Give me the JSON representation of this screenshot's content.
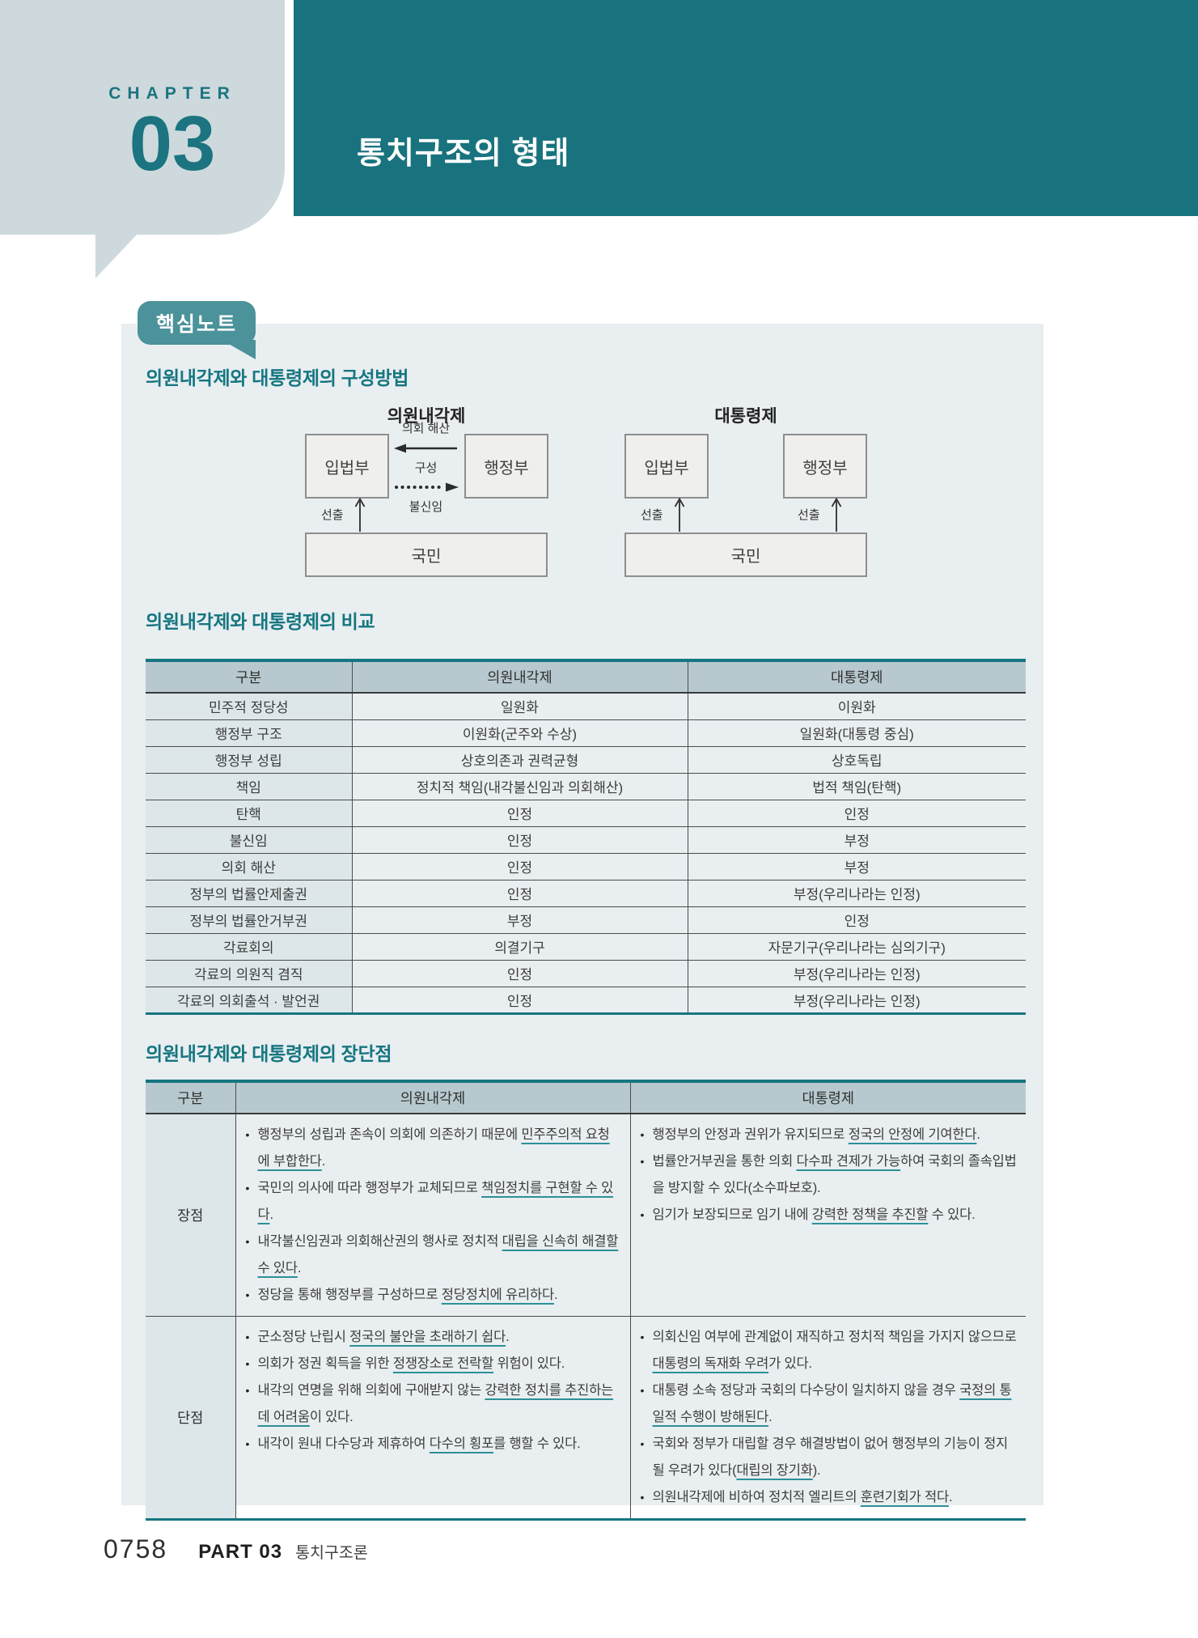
{
  "theme": {
    "accent_teal": "#18737e",
    "badge_teal": "#4b929a",
    "bubble_gray": "#ced9dd",
    "panel_bg": "#e9eef1",
    "table_header_bg": "#b7c9ce",
    "row_label_bg": "#dde7ea",
    "underline_teal": "#2d9097"
  },
  "chapter": {
    "label": "CHAPTER",
    "number": "03",
    "title": "통치구조의 형태"
  },
  "badge": {
    "label": "핵심노트"
  },
  "sections": {
    "composition": {
      "title": "의원내각제와 대통령제의 구성방법",
      "parliamentary": {
        "title": "의원내각제",
        "boxes": {
          "legislature": "입법부",
          "executive": "행정부",
          "people": "국민"
        },
        "arrows": {
          "dissolution": "의회 해산",
          "formation": "구성",
          "no_confidence": "불신임",
          "election": "선출"
        }
      },
      "presidential": {
        "title": "대통령제",
        "boxes": {
          "legislature": "입법부",
          "executive": "행정부",
          "people": "국민"
        },
        "arrows": {
          "election_left": "선출",
          "election_right": "선출"
        }
      }
    },
    "comparison": {
      "title": "의원내각제와 대통령제의 비교",
      "headers": [
        "구분",
        "의원내각제",
        "대통령제"
      ],
      "rows": [
        [
          "민주적 정당성",
          "일원화",
          "이원화"
        ],
        [
          "행정부 구조",
          "이원화(군주와 수상)",
          "일원화(대통령 중심)"
        ],
        [
          "행정부 성립",
          "상호의존과 권력균형",
          "상호독립"
        ],
        [
          "책임",
          "정치적 책임(내각불신임과 의회해산)",
          "법적 책임(탄핵)"
        ],
        [
          "탄핵",
          "인정",
          "인정"
        ],
        [
          "불신임",
          "인정",
          "부정"
        ],
        [
          "의회 해산",
          "인정",
          "부정"
        ],
        [
          "정부의 법률안제출권",
          "인정",
          "부정(우리나라는 인정)"
        ],
        [
          "정부의 법률안거부권",
          "부정",
          "인정"
        ],
        [
          "각료회의",
          "의결기구",
          "자문기구(우리나라는 심의기구)"
        ],
        [
          "각료의 의원직 겸직",
          "인정",
          "부정(우리나라는 인정)"
        ],
        [
          "각료의 의회출석 · 발언권",
          "인정",
          "부정(우리나라는 인정)"
        ]
      ]
    },
    "pros_cons": {
      "title": "의원내각제와 대통령제의 장단점",
      "headers": [
        "구분",
        "의원내각제",
        "대통령제"
      ],
      "rows": [
        {
          "label": "장점",
          "cells": [
            [
              [
                {
                  "t": "행정부의 성립과 존속이 의회에 의존하기 때문에 "
                },
                {
                  "t": "민주주의적 요청에 부합한다",
                  "u": true
                },
                {
                  "t": "."
                }
              ],
              [
                {
                  "t": "국민의 의사에 따라 행정부가 교체되므로 "
                },
                {
                  "t": "책임정치를 구현할 수 있다",
                  "u": true
                },
                {
                  "t": "."
                }
              ],
              [
                {
                  "t": "내각불신임권과 의회해산권의 행사로 정치적 "
                },
                {
                  "t": "대립을 신속히 해결할 수 있다",
                  "u": true
                },
                {
                  "t": "."
                }
              ],
              [
                {
                  "t": "정당을 통해 행정부를 구성하므로 "
                },
                {
                  "t": "정당정치에 유리하다",
                  "u": true
                },
                {
                  "t": "."
                }
              ]
            ],
            [
              [
                {
                  "t": "행정부의 안정과 권위가 유지되므로 "
                },
                {
                  "t": "정국의 안정에 기여한다",
                  "u": true
                },
                {
                  "t": "."
                }
              ],
              [
                {
                  "t": "법률안거부권을 통한 의회 "
                },
                {
                  "t": "다수파 견제가 가능",
                  "u": true
                },
                {
                  "t": "하여 국회의 졸속입법을 방지할 수 있다(소수파보호)."
                }
              ],
              [
                {
                  "t": "임기가 보장되므로 임기 내에 "
                },
                {
                  "t": "강력한 정책을 추진할",
                  "u": true
                },
                {
                  "t": " 수 있다."
                }
              ]
            ]
          ]
        },
        {
          "label": "단점",
          "cells": [
            [
              [
                {
                  "t": "군소정당 난립시 "
                },
                {
                  "t": "정국의 불안을 초래하기 쉽다",
                  "u": true
                },
                {
                  "t": "."
                }
              ],
              [
                {
                  "t": "의회가 정권 획득을 위한 "
                },
                {
                  "t": "정쟁장소로 전락할",
                  "u": true
                },
                {
                  "t": " 위험이 있다."
                }
              ],
              [
                {
                  "t": "내각의 연명을 위해 의회에 구애받지 않는 "
                },
                {
                  "t": "강력한 정치를 추진하는 데 어려움",
                  "u": true
                },
                {
                  "t": "이 있다."
                }
              ],
              [
                {
                  "t": "내각이 원내 다수당과 제휴하여 "
                },
                {
                  "t": "다수의 횡포",
                  "u": true
                },
                {
                  "t": "를 행할 수 있다."
                }
              ]
            ],
            [
              [
                {
                  "t": "의회신임 여부에 관계없이 재직하고 정치적 책임을 가지지 않으므로 "
                },
                {
                  "t": "대통령의 독재화 우려",
                  "u": true
                },
                {
                  "t": "가 있다."
                }
              ],
              [
                {
                  "t": "대통령 소속 정당과 국회의 다수당이 일치하지 않을 경우 "
                },
                {
                  "t": "국정의 통일적 수행이 방해된다",
                  "u": true
                },
                {
                  "t": "."
                }
              ],
              [
                {
                  "t": "국회와 정부가 대립할 경우 해결방법이 없어 행정부의 기능이 정지될 우려가 있다("
                },
                {
                  "t": "대립의 장기화",
                  "u": true
                },
                {
                  "t": ")."
                }
              ],
              [
                {
                  "t": "의원내각제에 비하여 정치적 엘리트의 "
                },
                {
                  "t": "훈련기회가 적다",
                  "u": true
                },
                {
                  "t": "."
                }
              ]
            ]
          ]
        }
      ]
    }
  },
  "footer": {
    "page": "0758",
    "part": "PART 03",
    "part_title": "통치구조론"
  }
}
